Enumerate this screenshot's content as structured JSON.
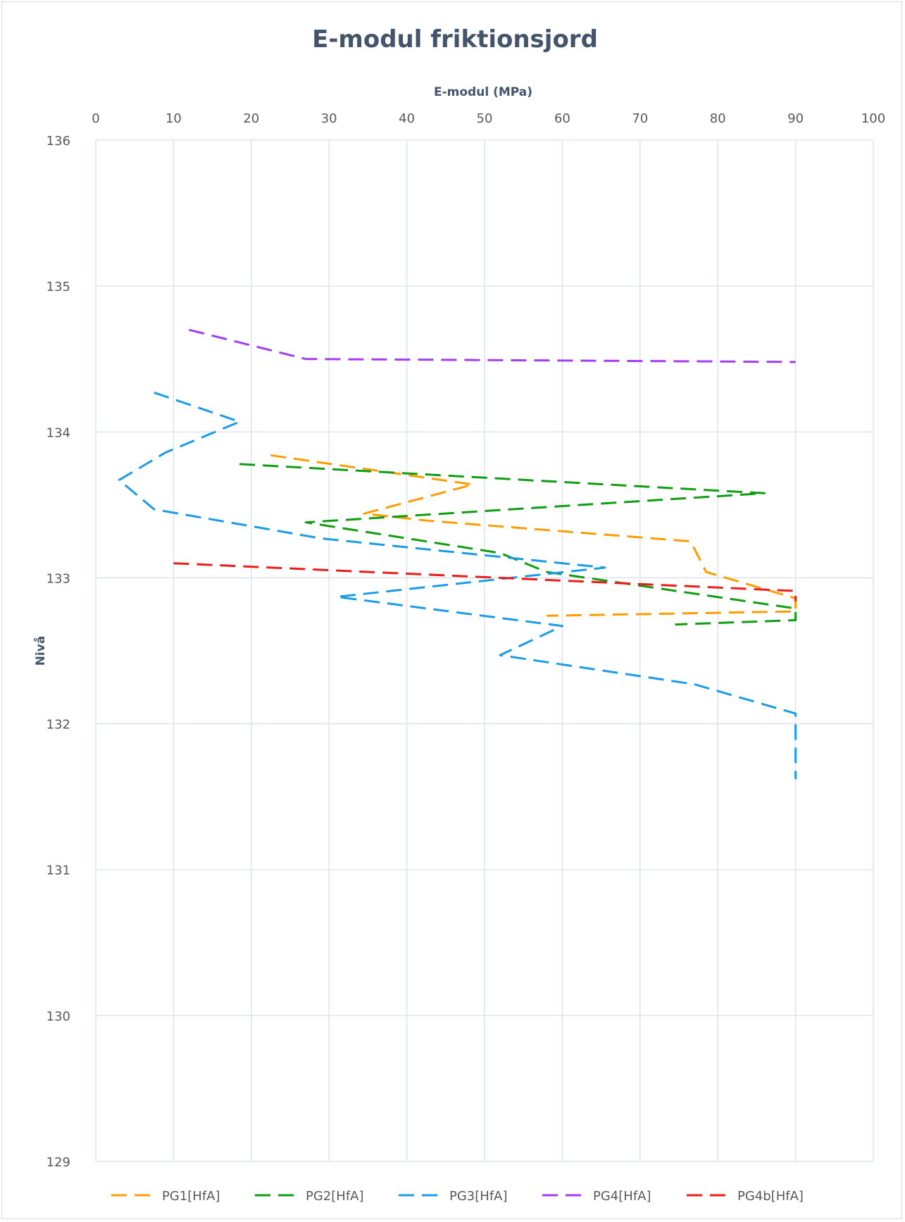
{
  "chart_data": {
    "type": "line",
    "title": "E-modul friktionsjord",
    "xlabel": "E-modul (MPa)",
    "ylabel": "Nivå",
    "xlim": [
      0,
      100
    ],
    "ylim": [
      129,
      136
    ],
    "x_ticks": [
      "0",
      "10",
      "20",
      "30",
      "40",
      "50",
      "60",
      "70",
      "80",
      "90",
      "100"
    ],
    "y_ticks": [
      "129",
      "130",
      "131",
      "132",
      "133",
      "134",
      "135",
      "136"
    ],
    "x_axis_position": "top",
    "grid": true,
    "legend_position": "bottom",
    "series": [
      {
        "name": "PG1[HfA]",
        "color": "#ff9c00",
        "points": [
          [
            22.5,
            133.84
          ],
          [
            48.5,
            133.64
          ],
          [
            34.5,
            133.44
          ],
          [
            43,
            133.39
          ],
          [
            76.5,
            133.25
          ],
          [
            78.5,
            133.04
          ],
          [
            90,
            132.86
          ],
          [
            90,
            132.77
          ],
          [
            58,
            132.74
          ]
        ]
      },
      {
        "name": "PG2[HfA]",
        "color": "#0f9d12",
        "points": [
          [
            18.5,
            133.78
          ],
          [
            86,
            133.58
          ],
          [
            27,
            133.38
          ],
          [
            52,
            133.17
          ],
          [
            58,
            133.04
          ],
          [
            90,
            132.79
          ],
          [
            90,
            132.71
          ],
          [
            74.5,
            132.68
          ]
        ]
      },
      {
        "name": "PG3[HfA]",
        "color": "#1a9ce6",
        "points": [
          [
            7.5,
            134.27
          ],
          [
            18.5,
            134.07
          ],
          [
            9,
            133.86
          ],
          [
            3,
            133.67
          ],
          [
            7.5,
            133.47
          ],
          [
            29,
            133.27
          ],
          [
            65.5,
            133.07
          ],
          [
            31,
            132.87
          ],
          [
            60,
            132.67
          ],
          [
            52,
            132.47
          ],
          [
            77,
            132.27
          ],
          [
            90,
            132.07
          ],
          [
            90,
            131.87
          ],
          [
            90,
            131.62
          ]
        ]
      },
      {
        "name": "PG4[HfA]",
        "color": "#a43df0",
        "points": [
          [
            12,
            134.7
          ],
          [
            27,
            134.5
          ],
          [
            90,
            134.48
          ]
        ]
      },
      {
        "name": "PG4b[HfA]",
        "color": "#ef1b1b",
        "points": [
          [
            10,
            133.1
          ],
          [
            90,
            132.91
          ],
          [
            90,
            132.84
          ]
        ]
      }
    ]
  }
}
